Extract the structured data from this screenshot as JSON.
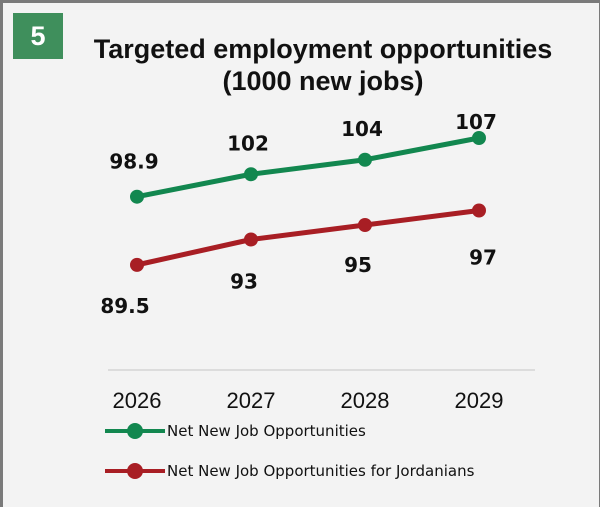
{
  "badge": "5",
  "colors": {
    "series_green": "#12874f",
    "series_red": "#a81e24",
    "badge_bg": "#3f8f5c"
  },
  "chart_data": {
    "type": "line",
    "title": "Targeted employment opportunities (1000 new jobs)",
    "xlabel": "",
    "ylabel": "",
    "x": [
      "2026",
      "2027",
      "2028",
      "2029"
    ],
    "series": [
      {
        "name": "Net New Job Opportunities",
        "values": [
          98.9,
          102,
          104,
          107
        ],
        "labels": [
          "98.9",
          "102",
          "104",
          "107"
        ],
        "color": "#12874f"
      },
      {
        "name": "Net New Job Opportunities for Jordanians",
        "values": [
          89.5,
          93,
          95,
          97
        ],
        "labels": [
          "89.5",
          "93",
          "95",
          "97"
        ],
        "color": "#a81e24"
      }
    ],
    "ylim": [
      75,
      115
    ],
    "grid": false,
    "legend": "bottom-left"
  }
}
